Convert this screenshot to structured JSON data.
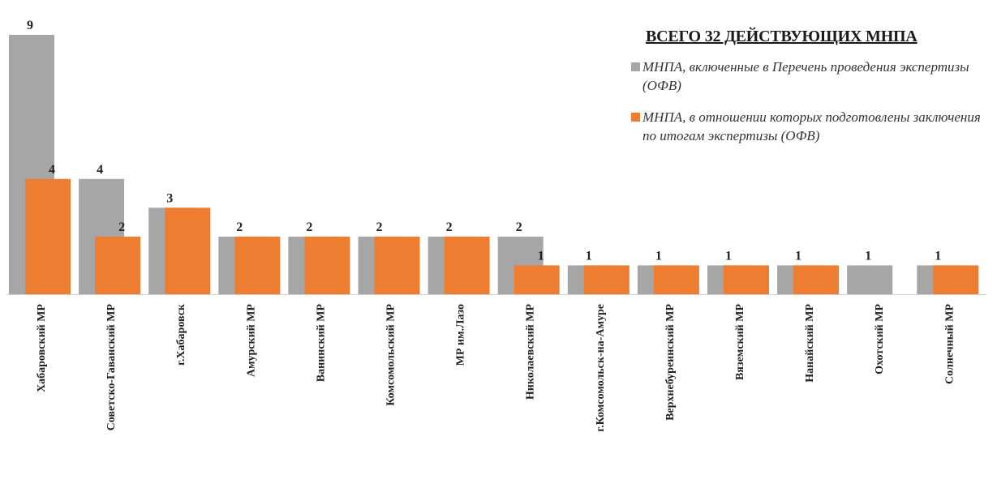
{
  "legend": {
    "title": "ВСЕГО 32 ДЕЙСТВУЮЩИХ МНПА",
    "items": [
      {
        "label": "МНПА, включенные в Перечень проведения экспертизы (ОФВ)"
      },
      {
        "label": "МНПА, в отношении которых подготовлены заключения по итогам экспертизы (ОФВ)"
      }
    ]
  },
  "chart_data": {
    "type": "bar",
    "title": "ВСЕГО 32 ДЕЙСТВУЮЩИХ МНПА",
    "categories": [
      "Хабаровский МР",
      "Советско-Гаванский МР",
      "г.Хабаровск",
      "Амурский МР",
      "Ванинский МР",
      "Комсомольский МР",
      "МР им.Лазо",
      "Николаевский МР",
      "г.Комсомольск-на-Амуре",
      "Верхнебуреинский МР",
      "Вяземский МР",
      "Нанайский МР",
      "Охотский МР",
      "Солнечный МР"
    ],
    "series": [
      {
        "name": "МНПА, включенные в Перечень проведения экспертизы (ОФВ)",
        "color": "#a6a6a6",
        "values": [
          9,
          4,
          3,
          2,
          2,
          2,
          2,
          2,
          1,
          1,
          1,
          1,
          1,
          1
        ]
      },
      {
        "name": "МНПА, в отношении которых подготовлены заключения по итогам экспертизы (ОФВ)",
        "color": "#ed7d31",
        "values": [
          4,
          2,
          3,
          2,
          2,
          2,
          2,
          1,
          1,
          1,
          1,
          1,
          0,
          1
        ]
      }
    ],
    "data_labels": {
      "series_0": [
        "9",
        "4",
        "3",
        "2",
        "2",
        "2",
        "2",
        "2",
        "1",
        "1",
        "1",
        "1",
        "1",
        "1"
      ],
      "series_1": [
        "4",
        "2",
        "",
        "",
        "",
        "",
        "",
        "1",
        "",
        "",
        "",
        "",
        "",
        ""
      ]
    },
    "ylim": [
      0,
      9
    ],
    "grid": false,
    "xlabel": "",
    "ylabel": "",
    "legend_position": "top-right"
  }
}
